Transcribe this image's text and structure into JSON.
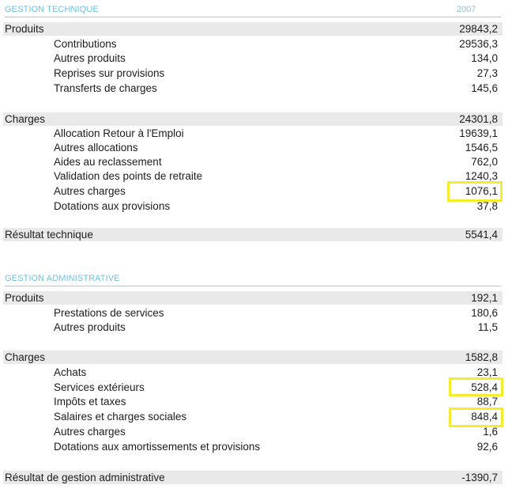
{
  "tech": {
    "title": "GESTION TECHNIQUE",
    "year": "2007",
    "produits": {
      "label": "Produits",
      "value": "29843,2"
    },
    "produits_items": [
      {
        "label": "Contributions",
        "value": "29536,3"
      },
      {
        "label": "Autres produits",
        "value": "134,0"
      },
      {
        "label": "Reprises sur provisions",
        "value": "27,3"
      },
      {
        "label": "Transferts de charges",
        "value": "145,6"
      }
    ],
    "charges": {
      "label": "Charges",
      "value": "24301,8"
    },
    "charges_items": [
      {
        "label": "Allocation Retour à l'Emploi",
        "value": "19639,1"
      },
      {
        "label": "Autres allocations",
        "value": "1546,5"
      },
      {
        "label": "Aides au reclassement",
        "value": "762,0"
      },
      {
        "label": "Validation des points de retraite",
        "value": "1240,3"
      },
      {
        "label": "Autres charges",
        "value": "1076,1"
      },
      {
        "label": "Dotations aux provisions",
        "value": "37,8"
      }
    ],
    "resultat": {
      "label": "Résultat technique",
      "value": "5541,4"
    }
  },
  "admin": {
    "title": "GESTION ADMINISTRATIVE",
    "produits": {
      "label": "Produits",
      "value": "192,1"
    },
    "produits_items": [
      {
        "label": "Prestations de services",
        "value": "180,6"
      },
      {
        "label": "Autres produits",
        "value": "11,5"
      }
    ],
    "charges": {
      "label": "Charges",
      "value": "1582,8"
    },
    "charges_items": [
      {
        "label": "Achats",
        "value": "23,1"
      },
      {
        "label": "Services extérieurs",
        "value": "528,4"
      },
      {
        "label": "Impôts et taxes",
        "value": "88,7"
      },
      {
        "label": "Salaires et charges sociales",
        "value": "848,4"
      },
      {
        "label": "Autres charges",
        "value": "1,6"
      },
      {
        "label": "Dotations aux amortissements et provisions",
        "value": "92,6"
      }
    ],
    "resultat": {
      "label": "Résultat de gestion administrative",
      "value": "-1390,7"
    }
  },
  "highlight_color": "#f4ec2c",
  "shade_color": "#e9e9e9",
  "heading_color": "#6ec2e4"
}
